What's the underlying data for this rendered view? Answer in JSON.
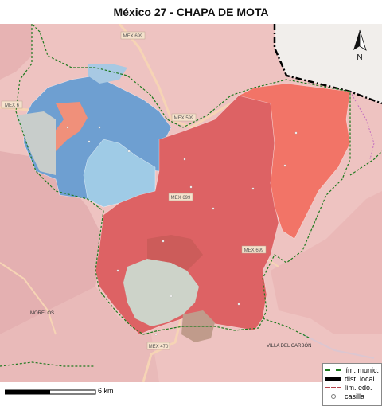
{
  "title": "México 27 - CHAPA DE MOTA",
  "map": {
    "roads": [
      "MEX 699",
      "MEX 6",
      "MEX 599",
      "MEX 699",
      "MEX 699",
      "MEX 470"
    ],
    "places": [
      "MORELOS",
      "VILLA DEL CARBÓN"
    ],
    "north_label": "N",
    "scale_label": "6 km"
  },
  "legend": {
    "items": [
      {
        "label": "lím. munic."
      },
      {
        "label": "dist. local"
      },
      {
        "label": "lím. edo."
      },
      {
        "label": "casilla"
      }
    ]
  },
  "colors": {
    "background_pink": "#efc4c2",
    "state_outside": "#f1eeeb",
    "blue_dark": "#6d9fd0",
    "blue_light": "#9ec9e6",
    "red_main": "#dc5f61",
    "red_light": "#f27367",
    "gray_area": "#ccd2c8",
    "brown_area": "#bf9a8a"
  }
}
